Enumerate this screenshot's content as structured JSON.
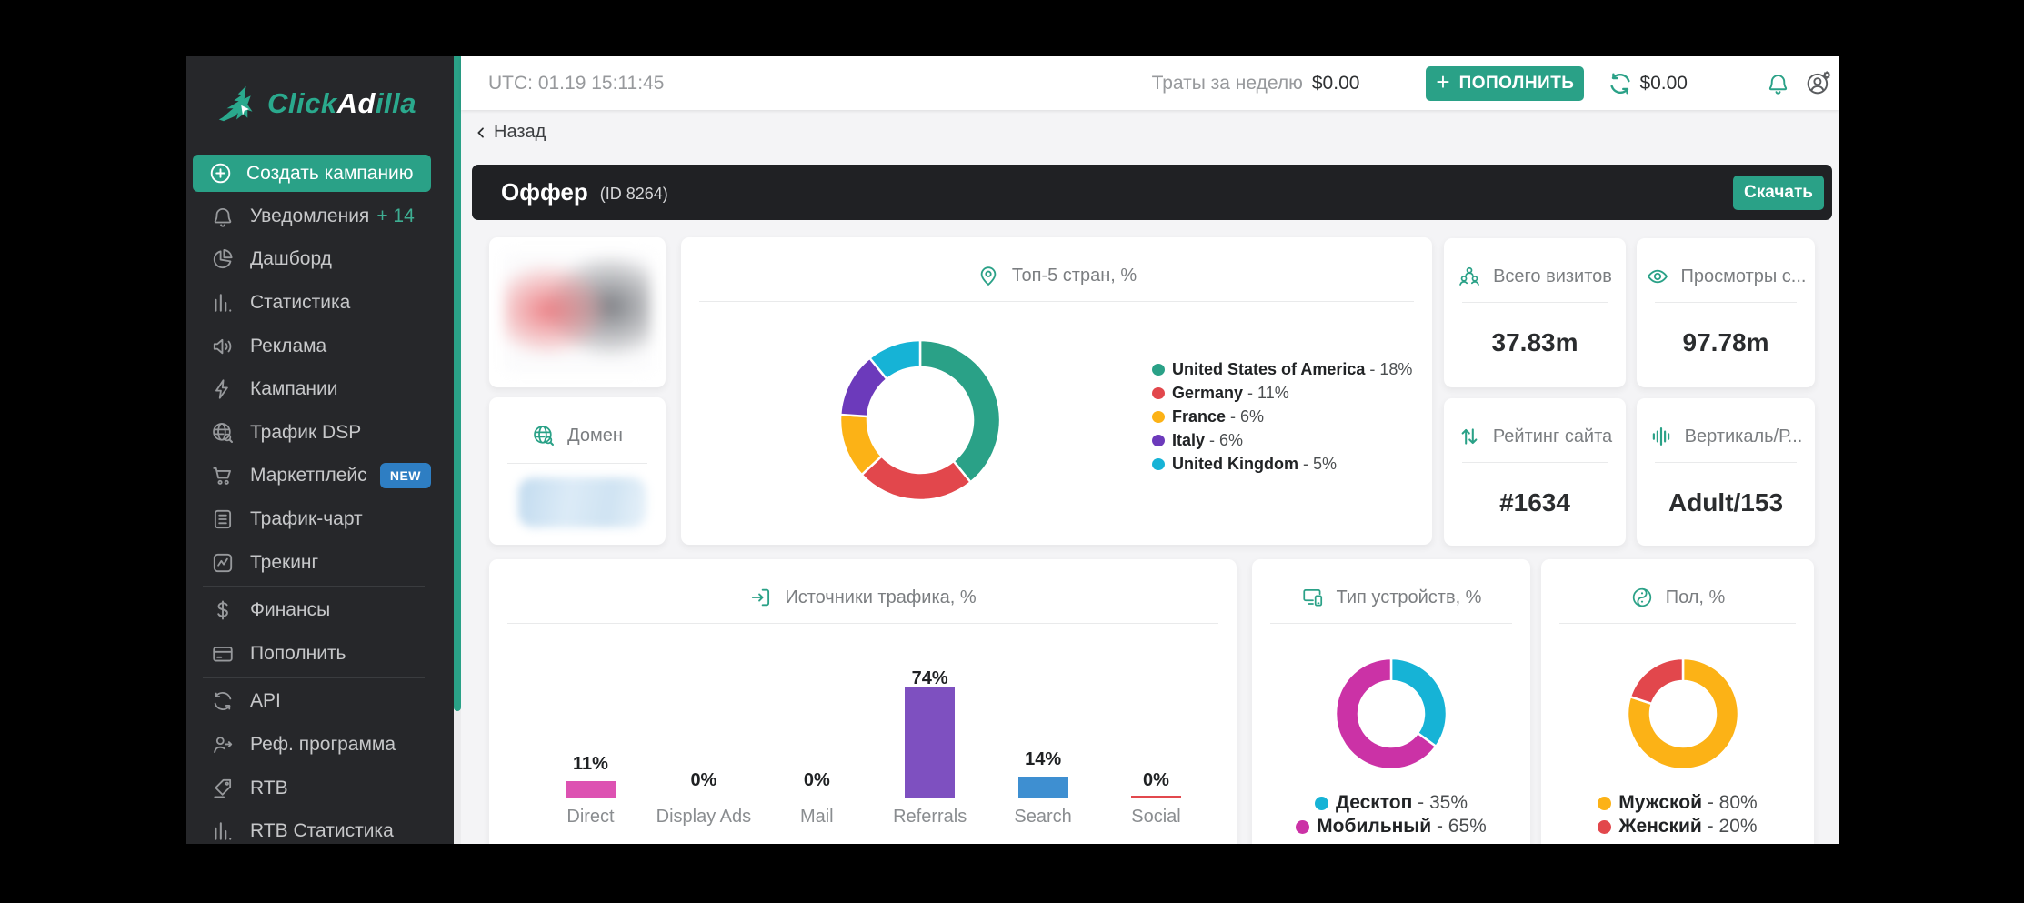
{
  "app": {
    "logo_primary": "Click",
    "logo_mid": "Ad",
    "logo_suffix": "illa"
  },
  "colors": {
    "accent": "#2aa187",
    "sidebar_bg": "#26272a",
    "content_bg": "#f4f4f6",
    "band_bg": "#202124",
    "new_badge": "#2e7ec3"
  },
  "sidebar": {
    "create_button": {
      "label": "Создать кампанию",
      "icon": "plus-circle-icon"
    },
    "items": [
      {
        "label": "Уведомления",
        "icon": "bell-icon",
        "suffix": "+ 14"
      },
      {
        "label": "Дашборд",
        "icon": "pie-chart-icon"
      },
      {
        "label": "Статистика",
        "icon": "bar-chart-icon"
      },
      {
        "label": "Реклама",
        "icon": "speaker-icon"
      },
      {
        "label": "Кампании",
        "icon": "lightning-icon"
      },
      {
        "label": "Трафик DSP",
        "icon": "globe-search-icon"
      },
      {
        "label": "Маркетплейс",
        "icon": "cart-icon",
        "badge": "NEW"
      },
      {
        "label": "Трафик-чарт",
        "icon": "document-icon"
      },
      {
        "label": "Трекинг",
        "icon": "activity-icon"
      },
      {
        "divider": true
      },
      {
        "label": "Финансы",
        "icon": "dollar-icon"
      },
      {
        "label": "Пополнить",
        "icon": "credit-card-icon"
      },
      {
        "divider": true
      },
      {
        "label": "API",
        "icon": "sync-circle-icon"
      },
      {
        "label": "Реф. программа",
        "icon": "user-arrow-icon"
      },
      {
        "label": "RTB",
        "icon": "tag-icon"
      },
      {
        "label": "RTB Статистика",
        "icon": "bar-chart-icon"
      }
    ]
  },
  "topbar": {
    "utc": "UTC: 01.19 15:11:45",
    "spend_label": "Траты за неделю",
    "spend_value": "$0.00",
    "topup_plus": "+",
    "topup_label": "ПОПОЛНИТЬ",
    "balance": "$0.00"
  },
  "page": {
    "back": "Назад",
    "title": "Оффер",
    "subtitle": "(ID 8264)",
    "download_label": "Скачать"
  },
  "domain_card": {
    "title": "Домен",
    "icon": "globe-search-icon"
  },
  "stats": {
    "cards": [
      {
        "title": "Всего визитов",
        "value": "37.83m",
        "icon": "users-icon"
      },
      {
        "title": "Просмотры с...",
        "value": "97.78m",
        "icon": "eye-icon"
      },
      {
        "title": "Рейтинг сайта",
        "value": "#1634",
        "icon": "sort-arrows-icon"
      },
      {
        "title": "Вертикаль/Р...",
        "value": "Adult/153",
        "icon": "equalizer-icon"
      }
    ]
  },
  "chart_data": [
    {
      "id": "top-countries",
      "type": "donut",
      "title": "Топ-5 стран, %",
      "icon": "location-pin-icon",
      "labels": [
        "United States of America",
        "Germany",
        "France",
        "Italy",
        "United Kingdom"
      ],
      "values": [
        18,
        11,
        6,
        6,
        5
      ],
      "colors": [
        "#2aa187",
        "#e2474c",
        "#fcb216",
        "#6c3abb",
        "#16b3d6"
      ],
      "unit": "%",
      "legend_position": "right",
      "start_angle": 0,
      "direction": "clockwise"
    },
    {
      "id": "traffic-sources",
      "type": "bar",
      "title": "Источники трафика, %",
      "icon": "login-icon",
      "categories": [
        "Direct",
        "Display Ads",
        "Mail",
        "Referrals",
        "Search",
        "Social"
      ],
      "values": [
        11,
        0,
        0,
        74,
        14,
        0
      ],
      "colors": [
        "#dd52b2",
        null,
        null,
        "#7e50c0",
        "#3e8fd1",
        "#e2484d"
      ],
      "unit": "%",
      "value_labels": [
        "11%",
        "0%",
        "0%",
        "74%",
        "14%",
        "0%"
      ],
      "axis": "hidden"
    },
    {
      "id": "device-type",
      "type": "donut",
      "title": "Тип устройств, %",
      "icon": "devices-icon",
      "labels": [
        "Десктоп",
        "Мобильный"
      ],
      "values": [
        35,
        65
      ],
      "colors": [
        "#16b3d6",
        "#cb32a6"
      ],
      "unit": "%",
      "legend_position": "bottom",
      "start_angle": 0,
      "direction": "clockwise"
    },
    {
      "id": "gender",
      "type": "donut",
      "title": "Пол, %",
      "icon": "yin-yang-icon",
      "labels": [
        "Мужской",
        "Женский"
      ],
      "values": [
        80,
        20
      ],
      "colors": [
        "#fcb216",
        "#e2474c"
      ],
      "unit": "%",
      "legend_position": "bottom",
      "start_angle": 0,
      "direction": "clockwise"
    }
  ]
}
